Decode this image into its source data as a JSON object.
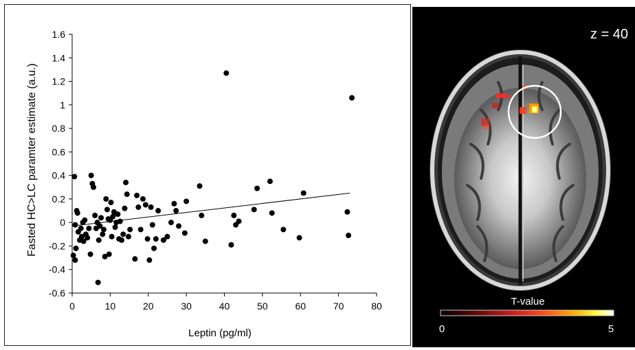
{
  "chart_data": {
    "type": "scatter",
    "xlabel": "Leptin (pg/ml)",
    "ylabel": "Fasted HC>LC paramter estimate (a.u.)",
    "xlim": [
      0,
      80
    ],
    "ylim": [
      -0.6,
      1.6
    ],
    "x_ticks": [
      "0",
      "10",
      "20",
      "30",
      "40",
      "50",
      "60",
      "70",
      "80"
    ],
    "y_ticks": [
      "-0.6",
      "-0.4",
      "-0.2",
      "0",
      "0.2",
      "0.4",
      "0.6",
      "0.8",
      "1",
      "1.2",
      "1.4",
      "1.6"
    ],
    "grid": false,
    "trendline": {
      "x": [
        0,
        73
      ],
      "y": [
        -0.03,
        0.25
      ]
    },
    "points": [
      [
        0.3,
        -0.28
      ],
      [
        0.6,
        0.39
      ],
      [
        0.8,
        -0.32
      ],
      [
        0.8,
        -0.02
      ],
      [
        1.0,
        -0.22
      ],
      [
        1.2,
        0.1
      ],
      [
        1.4,
        0.08
      ],
      [
        1.6,
        -0.08
      ],
      [
        2.0,
        -0.15
      ],
      [
        2.3,
        -0.05
      ],
      [
        2.5,
        -0.12
      ],
      [
        2.8,
        0.0
      ],
      [
        3.0,
        -0.16
      ],
      [
        3.3,
        0.02
      ],
      [
        3.6,
        -0.1
      ],
      [
        4.0,
        -0.13
      ],
      [
        4.4,
        -0.05
      ],
      [
        4.8,
        -0.27
      ],
      [
        5.0,
        0.4
      ],
      [
        5.3,
        0.33
      ],
      [
        5.6,
        0.3
      ],
      [
        6.0,
        0.06
      ],
      [
        6.3,
        -0.05
      ],
      [
        6.6,
        0.0
      ],
      [
        6.8,
        -0.51
      ],
      [
        7.0,
        -0.15
      ],
      [
        7.3,
        -0.03
      ],
      [
        7.6,
        0.04
      ],
      [
        8.0,
        -0.1
      ],
      [
        8.3,
        -0.06
      ],
      [
        8.6,
        -0.29
      ],
      [
        8.9,
        0.2
      ],
      [
        9.2,
        0.11
      ],
      [
        9.5,
        0.03
      ],
      [
        9.7,
        -0.27
      ],
      [
        10.0,
        0.02
      ],
      [
        10.2,
        0.17
      ],
      [
        10.4,
        -0.12
      ],
      [
        10.7,
        0.05
      ],
      [
        11.0,
        0.09
      ],
      [
        11.3,
        -0.04
      ],
      [
        11.6,
        0.0
      ],
      [
        12.0,
        0.07
      ],
      [
        12.3,
        -0.14
      ],
      [
        12.6,
        0.01
      ],
      [
        13.0,
        -0.15
      ],
      [
        13.4,
        -0.1
      ],
      [
        13.8,
        0.12
      ],
      [
        14.1,
        0.34
      ],
      [
        14.4,
        0.24
      ],
      [
        14.8,
        -0.12
      ],
      [
        15.2,
        -0.06
      ],
      [
        16.5,
        -0.31
      ],
      [
        17.0,
        0.23
      ],
      [
        17.4,
        0.13
      ],
      [
        18.0,
        -0.06
      ],
      [
        18.6,
        0.2
      ],
      [
        19.3,
        0.15
      ],
      [
        19.8,
        -0.14
      ],
      [
        20.3,
        -0.32
      ],
      [
        20.7,
        0.13
      ],
      [
        21.1,
        -0.02
      ],
      [
        21.5,
        -0.22
      ],
      [
        22.0,
        -0.14
      ],
      [
        22.6,
        0.1
      ],
      [
        24.0,
        -0.15
      ],
      [
        25.0,
        -0.12
      ],
      [
        26.0,
        0.0
      ],
      [
        26.8,
        0.16
      ],
      [
        27.3,
        0.1
      ],
      [
        28.0,
        -0.03
      ],
      [
        30.0,
        0.18
      ],
      [
        29.6,
        -0.09
      ],
      [
        33.5,
        0.31
      ],
      [
        34.0,
        0.06
      ],
      [
        35.0,
        -0.16
      ],
      [
        40.5,
        1.27
      ],
      [
        41.8,
        -0.19
      ],
      [
        42.5,
        0.06
      ],
      [
        43.0,
        -0.02
      ],
      [
        43.8,
        0.01
      ],
      [
        47.8,
        0.11
      ],
      [
        48.6,
        0.29
      ],
      [
        52.0,
        0.35
      ],
      [
        52.5,
        0.08
      ],
      [
        55.5,
        -0.06
      ],
      [
        59.7,
        -0.13
      ],
      [
        60.8,
        0.25
      ],
      [
        72.3,
        0.09
      ],
      [
        72.6,
        -0.11
      ],
      [
        73.5,
        1.06
      ]
    ]
  },
  "brain_panel": {
    "slice_label": "z = 40",
    "colorbar_title": "T-value",
    "colorbar_min": "0",
    "colorbar_max": "5",
    "colormap": [
      "#000000",
      "#5a0a0a",
      "#c81e1e",
      "#ff4d1a",
      "#ffb400",
      "#ffff40",
      "#ffffff"
    ]
  }
}
